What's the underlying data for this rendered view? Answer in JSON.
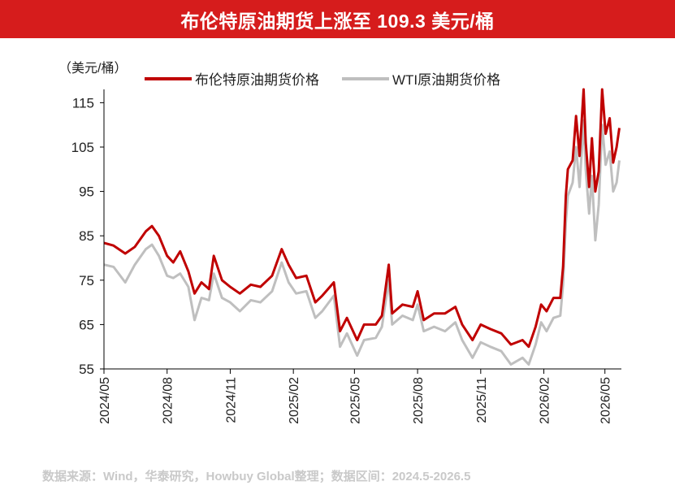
{
  "title": "布伦特原油期货上涨至 109.3 美元/桶",
  "source": "数据来源：Wind，华泰研究，Howbuy Global整理；数据区间：2024.5-2026.5",
  "colors": {
    "title_bg": "#d61c1c",
    "brent": "#c00000",
    "wti": "#bfbfbf"
  },
  "chart_data": {
    "type": "line",
    "title": "布伦特原油期货上涨至 109.3 美元/桶",
    "ylabel": "（美元/桶）",
    "xlabel": "",
    "ylim": [
      55,
      118
    ],
    "xlim": [
      "2024-05-01",
      "2026-05-25"
    ],
    "yticks": [
      55,
      65,
      75,
      85,
      95,
      105,
      115
    ],
    "xticks": [
      "2024/05",
      "2024/08",
      "2024/11",
      "2025/02",
      "2025/05",
      "2025/08",
      "2025/11",
      "2026/02",
      "2026/05"
    ],
    "legend": "top",
    "grid": false,
    "series": [
      {
        "name": "布伦特原油期货价格",
        "color": "#c00000",
        "points": [
          [
            "2024-05-01",
            83.4
          ],
          [
            "2024-05-15",
            82.8
          ],
          [
            "2024-06-01",
            81.0
          ],
          [
            "2024-06-15",
            82.5
          ],
          [
            "2024-07-01",
            86.0
          ],
          [
            "2024-07-10",
            87.2
          ],
          [
            "2024-07-20",
            85.0
          ],
          [
            "2024-08-01",
            80.5
          ],
          [
            "2024-08-10",
            79.0
          ],
          [
            "2024-08-20",
            81.5
          ],
          [
            "2024-09-01",
            77.0
          ],
          [
            "2024-09-10",
            72.0
          ],
          [
            "2024-09-20",
            74.5
          ],
          [
            "2024-10-01",
            73.0
          ],
          [
            "2024-10-08",
            80.5
          ],
          [
            "2024-10-20",
            75.0
          ],
          [
            "2024-11-01",
            73.5
          ],
          [
            "2024-11-15",
            72.0
          ],
          [
            "2024-12-01",
            74.0
          ],
          [
            "2024-12-15",
            73.5
          ],
          [
            "2025-01-01",
            76.0
          ],
          [
            "2025-01-15",
            82.0
          ],
          [
            "2025-01-25",
            78.5
          ],
          [
            "2025-02-05",
            75.5
          ],
          [
            "2025-02-20",
            76.0
          ],
          [
            "2025-03-05",
            70.0
          ],
          [
            "2025-03-15",
            71.5
          ],
          [
            "2025-04-01",
            74.5
          ],
          [
            "2025-04-10",
            63.5
          ],
          [
            "2025-04-20",
            66.5
          ],
          [
            "2025-05-05",
            61.5
          ],
          [
            "2025-05-15",
            65.0
          ],
          [
            "2025-06-01",
            65.0
          ],
          [
            "2025-06-10",
            67.0
          ],
          [
            "2025-06-20",
            78.5
          ],
          [
            "2025-06-25",
            67.5
          ],
          [
            "2025-07-10",
            69.5
          ],
          [
            "2025-07-25",
            69.0
          ],
          [
            "2025-08-01",
            72.5
          ],
          [
            "2025-08-10",
            66.0
          ],
          [
            "2025-08-25",
            67.5
          ],
          [
            "2025-09-10",
            67.5
          ],
          [
            "2025-09-25",
            69.0
          ],
          [
            "2025-10-05",
            65.0
          ],
          [
            "2025-10-20",
            61.5
          ],
          [
            "2025-11-01",
            65.0
          ],
          [
            "2025-11-15",
            64.0
          ],
          [
            "2025-12-01",
            63.0
          ],
          [
            "2025-12-15",
            60.5
          ],
          [
            "2026-01-01",
            61.5
          ],
          [
            "2026-01-10",
            60.0
          ],
          [
            "2026-01-20",
            64.5
          ],
          [
            "2026-01-28",
            69.5
          ],
          [
            "2026-02-05",
            68.0
          ],
          [
            "2026-02-15",
            71.0
          ],
          [
            "2026-02-25",
            71.0
          ],
          [
            "2026-03-01",
            78.0
          ],
          [
            "2026-03-05",
            94.0
          ],
          [
            "2026-03-08",
            100.0
          ],
          [
            "2026-03-15",
            102.0
          ],
          [
            "2026-03-20",
            112.0
          ],
          [
            "2026-03-25",
            103.0
          ],
          [
            "2026-03-31",
            118.0
          ],
          [
            "2026-04-03",
            106.0
          ],
          [
            "2026-04-08",
            96.0
          ],
          [
            "2026-04-12",
            107.0
          ],
          [
            "2026-04-17",
            95.0
          ],
          [
            "2026-04-22",
            99.5
          ],
          [
            "2026-04-27",
            118.0
          ],
          [
            "2026-05-02",
            108.0
          ],
          [
            "2026-05-08",
            111.5
          ],
          [
            "2026-05-13",
            101.5
          ],
          [
            "2026-05-18",
            105.0
          ],
          [
            "2026-05-22",
            109.3
          ]
        ]
      },
      {
        "name": "WTI原油期货价格",
        "color": "#bfbfbf",
        "points": [
          [
            "2024-05-01",
            78.5
          ],
          [
            "2024-05-15",
            78.0
          ],
          [
            "2024-06-01",
            74.5
          ],
          [
            "2024-06-15",
            78.5
          ],
          [
            "2024-07-01",
            82.0
          ],
          [
            "2024-07-10",
            83.0
          ],
          [
            "2024-07-20",
            80.5
          ],
          [
            "2024-08-01",
            76.0
          ],
          [
            "2024-08-10",
            75.5
          ],
          [
            "2024-08-20",
            76.5
          ],
          [
            "2024-09-01",
            73.5
          ],
          [
            "2024-09-10",
            66.0
          ],
          [
            "2024-09-20",
            71.0
          ],
          [
            "2024-10-01",
            70.5
          ],
          [
            "2024-10-08",
            76.5
          ],
          [
            "2024-10-20",
            71.0
          ],
          [
            "2024-11-01",
            70.0
          ],
          [
            "2024-11-15",
            68.0
          ],
          [
            "2024-12-01",
            70.5
          ],
          [
            "2024-12-15",
            70.0
          ],
          [
            "2025-01-01",
            72.5
          ],
          [
            "2025-01-15",
            79.0
          ],
          [
            "2025-01-25",
            74.5
          ],
          [
            "2025-02-05",
            72.0
          ],
          [
            "2025-02-20",
            72.5
          ],
          [
            "2025-03-05",
            66.5
          ],
          [
            "2025-03-15",
            68.0
          ],
          [
            "2025-04-01",
            71.5
          ],
          [
            "2025-04-10",
            60.0
          ],
          [
            "2025-04-20",
            63.0
          ],
          [
            "2025-05-05",
            58.0
          ],
          [
            "2025-05-15",
            61.5
          ],
          [
            "2025-06-01",
            62.0
          ],
          [
            "2025-06-10",
            64.5
          ],
          [
            "2025-06-20",
            75.0
          ],
          [
            "2025-06-25",
            65.0
          ],
          [
            "2025-07-10",
            67.0
          ],
          [
            "2025-07-25",
            66.0
          ],
          [
            "2025-08-01",
            69.5
          ],
          [
            "2025-08-10",
            63.5
          ],
          [
            "2025-08-25",
            64.5
          ],
          [
            "2025-09-10",
            63.5
          ],
          [
            "2025-09-25",
            65.5
          ],
          [
            "2025-10-05",
            61.5
          ],
          [
            "2025-10-20",
            57.5
          ],
          [
            "2025-11-01",
            61.0
          ],
          [
            "2025-11-15",
            60.0
          ],
          [
            "2025-12-01",
            59.0
          ],
          [
            "2025-12-15",
            56.0
          ],
          [
            "2026-01-01",
            57.5
          ],
          [
            "2026-01-10",
            56.0
          ],
          [
            "2026-01-20",
            60.5
          ],
          [
            "2026-01-28",
            65.5
          ],
          [
            "2026-02-05",
            63.5
          ],
          [
            "2026-02-15",
            66.5
          ],
          [
            "2026-02-25",
            67.0
          ],
          [
            "2026-03-01",
            74.0
          ],
          [
            "2026-03-05",
            88.0
          ],
          [
            "2026-03-08",
            94.0
          ],
          [
            "2026-03-15",
            97.0
          ],
          [
            "2026-03-20",
            105.0
          ],
          [
            "2026-03-25",
            96.0
          ],
          [
            "2026-03-31",
            111.0
          ],
          [
            "2026-04-03",
            100.0
          ],
          [
            "2026-04-08",
            90.0
          ],
          [
            "2026-04-12",
            98.5
          ],
          [
            "2026-04-17",
            84.0
          ],
          [
            "2026-04-22",
            92.0
          ],
          [
            "2026-04-27",
            110.0
          ],
          [
            "2026-05-02",
            101.0
          ],
          [
            "2026-05-08",
            104.0
          ],
          [
            "2026-05-13",
            95.0
          ],
          [
            "2026-05-18",
            97.0
          ],
          [
            "2026-05-22",
            102.0
          ]
        ]
      }
    ]
  }
}
